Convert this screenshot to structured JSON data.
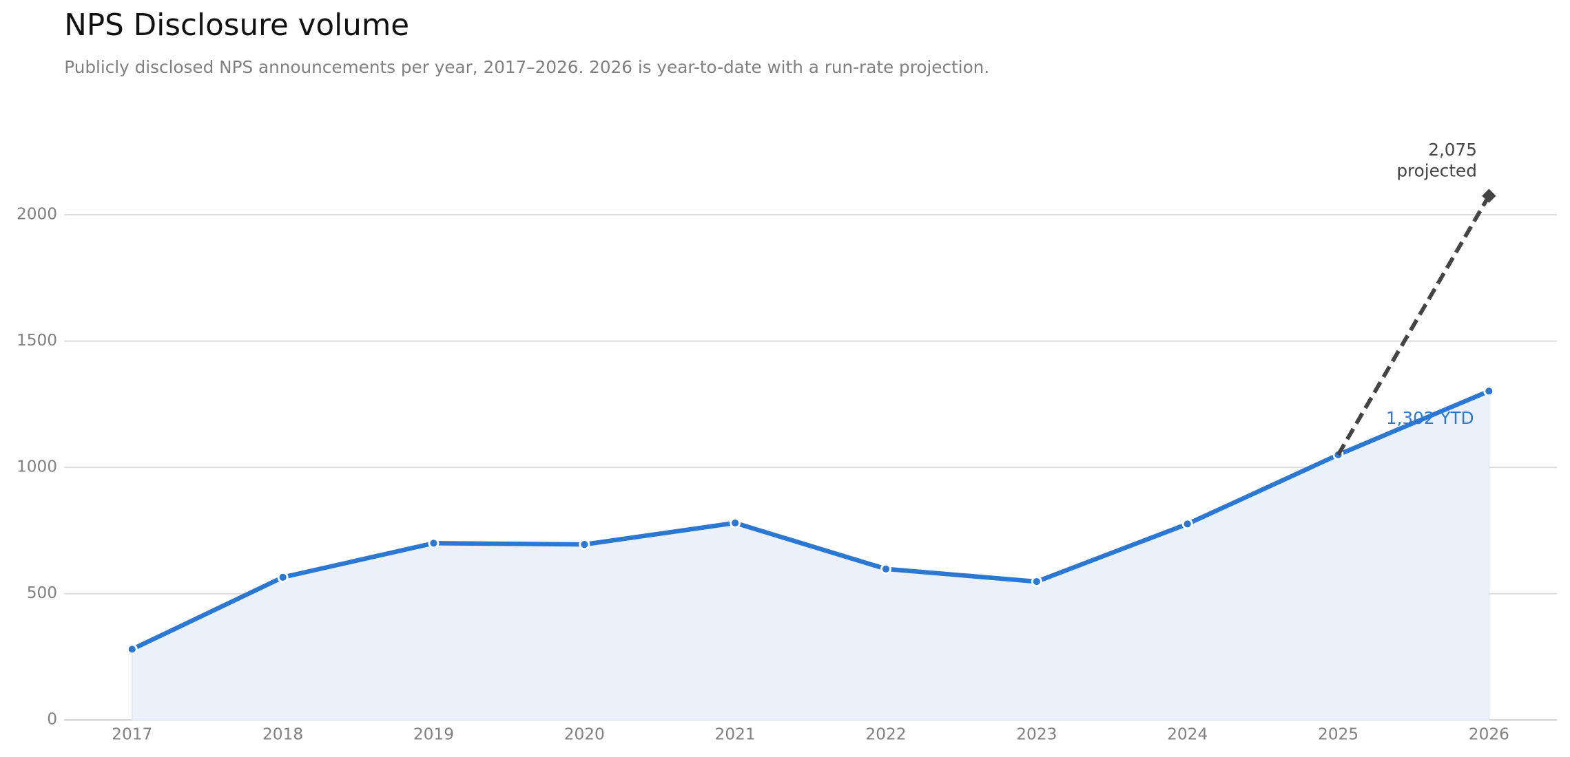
{
  "chart_data": {
    "type": "line",
    "title": "NPS Disclosure volume",
    "subtitle": "Publicly disclosed NPS announcements per year, 2017–2026. 2026 is year-to-date with a run-rate projection.",
    "x": [
      2017,
      2018,
      2019,
      2020,
      2021,
      2022,
      2023,
      2024,
      2025,
      2026
    ],
    "series": [
      {
        "color": "#2b78d4",
        "fill": "#eaf1fb",
        "values": [
          280,
          565,
          700,
          695,
          780,
          598,
          548,
          776,
          1050,
          1302
        ],
        "value_labels": [
          null,
          null,
          null,
          null,
          null,
          null,
          null,
          null,
          null,
          "1,302 YTD"
        ]
      },
      {
        "x": [
          2025,
          2026
        ],
        "color": "#444444",
        "dashed": true,
        "values": [
          1050,
          2075
        ],
        "value_labels": [
          null,
          "2,075"
        ]
      }
    ],
    "projection_note": "projected",
    "xlim": [
      2016.55,
      2026.45
    ],
    "xticks": [
      2017,
      2018,
      2019,
      2020,
      2021,
      2022,
      2023,
      2024,
      2025,
      2026
    ],
    "ylim": [
      0,
      2300
    ],
    "yticks": [
      0,
      500,
      1000,
      1500,
      2000
    ],
    "grid": true
  }
}
